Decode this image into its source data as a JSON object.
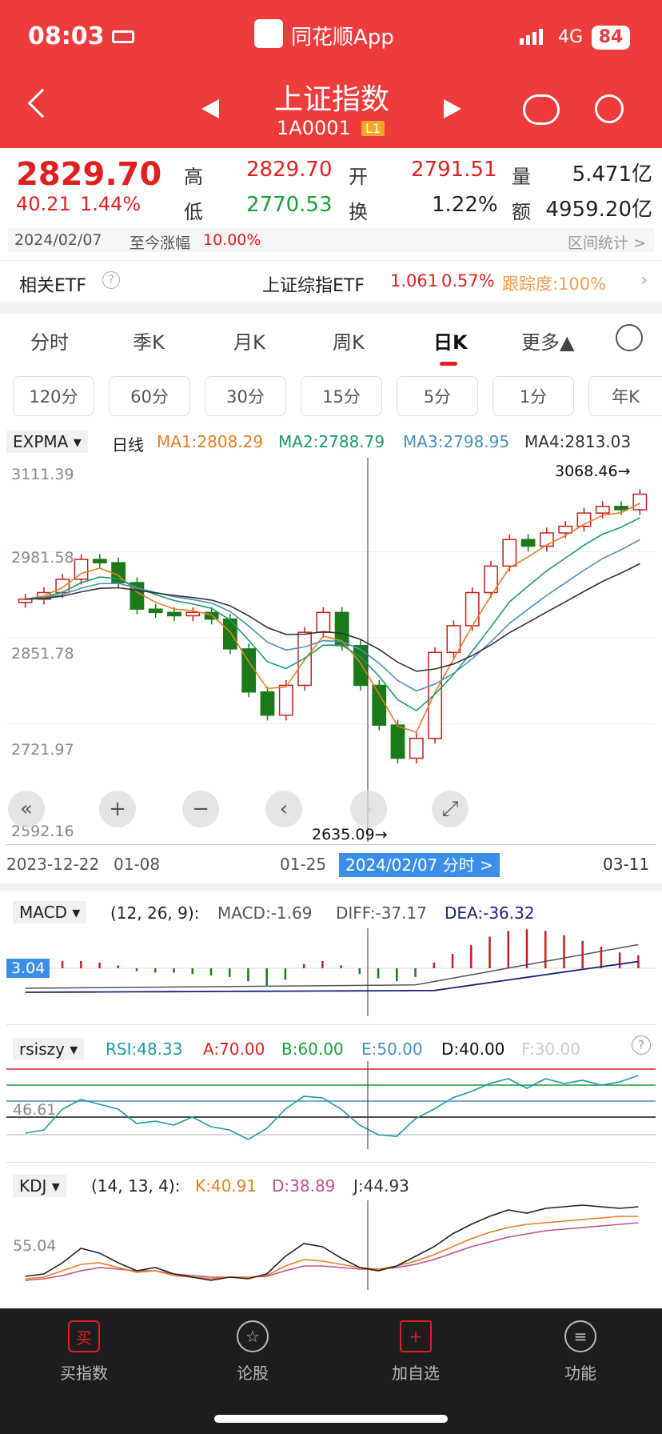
{
  "status": {
    "time": "08:03",
    "app": "同花顺App",
    "network": "4G",
    "battery": "84"
  },
  "nav": {
    "title": "上证指数",
    "code": "1A0001",
    "level": "L1"
  },
  "quote": {
    "price": "2829.70",
    "change": "40.21",
    "pct": "1.44%",
    "high_label": "高",
    "high": "2829.70",
    "open_label": "开",
    "open": "2791.51",
    "vol_label": "量",
    "vol": "5.471亿",
    "low_label": "低",
    "low": "2770.53",
    "turn_label": "换",
    "turn": "1.22%",
    "amt_label": "额",
    "amt": "4959.20亿",
    "date": "2024/02/07",
    "since_label": "至今涨幅",
    "since": "10.00%",
    "interval": "区间统计 >"
  },
  "etf": {
    "label": "相关ETF",
    "name": "上证综指ETF",
    "price": "1.061",
    "pct": "0.57%",
    "track": "跟踪度:100%"
  },
  "tabs": [
    "分时",
    "季K",
    "月K",
    "周K",
    "日K",
    "更多▲"
  ],
  "active_tab": "日K",
  "periods": [
    "120分",
    "60分",
    "30分",
    "15分",
    "5分",
    "1分",
    "年K"
  ],
  "kline": {
    "indicator": "EXPMA",
    "kind": "日线",
    "ma1": "MA1:2808.29",
    "ma2": "MA2:2788.79",
    "ma3": "MA3:2798.95",
    "ma4": "MA4:2813.03",
    "max_label": "3068.46→",
    "min_label": "2635.09→",
    "y_ticks": [
      "3111.39",
      "2981.58",
      "2851.78",
      "2721.97",
      "2592.16"
    ],
    "dates": [
      "2023-12-22",
      "01-08",
      "01-25",
      "03-11"
    ],
    "cursor": "2024/02/07 分时 >"
  },
  "macd": {
    "name": "MACD",
    "params": "(12, 26, 9):",
    "macd": "MACD:-1.69",
    "diff": "DIFF:-37.17",
    "dea": "DEA:-36.32",
    "label": "3.04"
  },
  "rsi": {
    "name": "rsiszy",
    "rsi": "RSI:48.33",
    "a": "A:70.00",
    "b": "B:60.00",
    "e": "E:50.00",
    "d": "D:40.00",
    "f": "F:30.00",
    "y": "46.61"
  },
  "kdj": {
    "name": "KDJ",
    "params": "(14, 13, 4):",
    "k": "K:40.91",
    "d": "D:38.89",
    "j": "J:44.93",
    "y": "55.04"
  },
  "bottom": [
    "买指数",
    "论股",
    "加自选",
    "功能"
  ],
  "chart_data": {
    "type": "candlestick",
    "x": [
      "2023-12-22",
      "01-08",
      "01-25",
      "2024/02/07",
      "03-11"
    ],
    "ylim": [
      2592.16,
      3111.39
    ],
    "close_approx": [
      2910,
      2920,
      2940,
      2970,
      2965,
      2935,
      2895,
      2890,
      2885,
      2890,
      2880,
      2835,
      2770,
      2735,
      2780,
      2860,
      2890,
      2840,
      2780,
      2720,
      2670,
      2700,
      2829.7,
      2870,
      2920,
      2960,
      3000,
      2990,
      3010,
      3020,
      3040,
      3050,
      3045,
      3068.46
    ],
    "high": 3068.46,
    "low": 2635.09
  }
}
